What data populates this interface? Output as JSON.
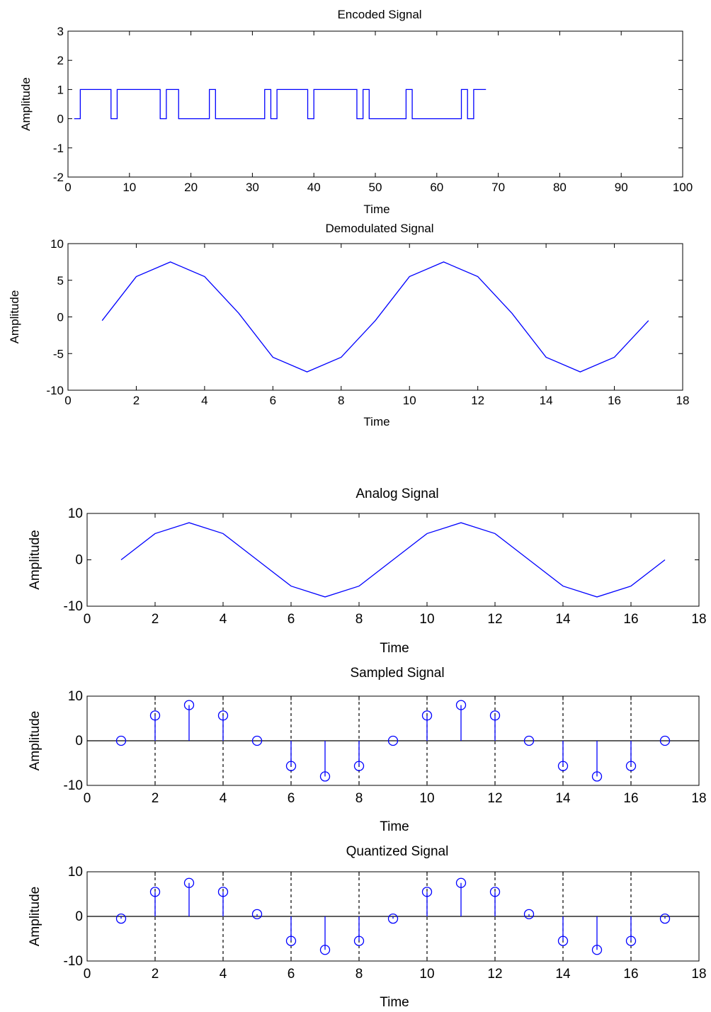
{
  "chart_data": [
    {
      "type": "line",
      "step": true,
      "title": "Encoded Signal",
      "xlabel": "Time",
      "ylabel": "Amplitude",
      "xlim": [
        0,
        100
      ],
      "ylim": [
        -2,
        3
      ],
      "xticks": [
        0,
        10,
        20,
        30,
        40,
        50,
        60,
        70,
        80,
        90,
        100
      ],
      "yticks": [
        -2,
        -1,
        0,
        1,
        2,
        3
      ],
      "color": "#0000ff",
      "bits": [
        0,
        1,
        1,
        1,
        1,
        1,
        0,
        1,
        1,
        1,
        1,
        1,
        1,
        1,
        0,
        1,
        1,
        0,
        0,
        0,
        0,
        0,
        1,
        0,
        0,
        0,
        0,
        0,
        0,
        0,
        0,
        1,
        0,
        1,
        1,
        1,
        1,
        1,
        0,
        1,
        1,
        1,
        1,
        1,
        1,
        1,
        0,
        1,
        0,
        0,
        0,
        0,
        0,
        0,
        1,
        0,
        0,
        0,
        0,
        0,
        0,
        0,
        0,
        1,
        0,
        1,
        1
      ],
      "x": [
        1,
        68
      ]
    },
    {
      "type": "line",
      "title": "Demodulated Signal",
      "xlabel": "Time",
      "ylabel": "Amplitude",
      "xlim": [
        0,
        18
      ],
      "ylim": [
        -10,
        10
      ],
      "xticks": [
        0,
        2,
        4,
        6,
        8,
        10,
        12,
        14,
        16,
        18
      ],
      "yticks": [
        -10,
        -5,
        0,
        5,
        10
      ],
      "color": "#0000ff",
      "x": [
        1,
        2,
        3,
        4,
        5,
        6,
        7,
        8,
        9,
        10,
        11,
        12,
        13,
        14,
        15,
        16,
        17
      ],
      "values": [
        -0.5,
        5.5,
        7.5,
        5.5,
        0.5,
        -5.5,
        -7.5,
        -5.5,
        -0.5,
        5.5,
        7.5,
        5.5,
        0.5,
        -5.5,
        -7.5,
        -5.5,
        -0.5
      ]
    },
    {
      "type": "line",
      "title": "Analog Signal",
      "xlabel": "Time",
      "ylabel": "Amplitude",
      "xlim": [
        0,
        18
      ],
      "ylim": [
        -10,
        10
      ],
      "xticks": [
        0,
        2,
        4,
        6,
        8,
        10,
        12,
        14,
        16,
        18
      ],
      "yticks": [
        -10,
        0,
        10
      ],
      "color": "#0000ff",
      "x": [
        1,
        2,
        3,
        4,
        5,
        6,
        7,
        8,
        9,
        10,
        11,
        12,
        13,
        14,
        15,
        16,
        17
      ],
      "values": [
        0,
        5.66,
        8,
        5.66,
        0,
        -5.66,
        -8,
        -5.66,
        0,
        5.66,
        8,
        5.66,
        0,
        -5.66,
        -8,
        -5.66,
        0
      ]
    },
    {
      "type": "stem",
      "title": "Sampled Signal",
      "xlabel": "Time",
      "ylabel": "Amplitude",
      "xlim": [
        0,
        18
      ],
      "ylim": [
        -10,
        10
      ],
      "xticks": [
        0,
        2,
        4,
        6,
        8,
        10,
        12,
        14,
        16,
        18
      ],
      "yticks": [
        -10,
        0,
        10
      ],
      "color": "#0000ff",
      "dashed_gridlines_x": [
        2,
        4,
        6,
        8,
        10,
        12,
        14,
        16
      ],
      "x": [
        1,
        2,
        3,
        4,
        5,
        6,
        7,
        8,
        9,
        10,
        11,
        12,
        13,
        14,
        15,
        16,
        17
      ],
      "values": [
        0,
        5.66,
        8,
        5.66,
        0,
        -5.66,
        -8,
        -5.66,
        0,
        5.66,
        8,
        5.66,
        0,
        -5.66,
        -8,
        -5.66,
        0
      ]
    },
    {
      "type": "stem",
      "title": "Quantized Signal",
      "xlabel": "Time",
      "ylabel": "Amplitude",
      "xlim": [
        0,
        18
      ],
      "ylim": [
        -10,
        10
      ],
      "xticks": [
        0,
        2,
        4,
        6,
        8,
        10,
        12,
        14,
        16,
        18
      ],
      "yticks": [
        -10,
        0,
        10
      ],
      "color": "#0000ff",
      "dashed_gridlines_x": [
        2,
        4,
        6,
        8,
        10,
        12,
        14,
        16
      ],
      "x": [
        1,
        2,
        3,
        4,
        5,
        6,
        7,
        8,
        9,
        10,
        11,
        12,
        13,
        14,
        15,
        16,
        17
      ],
      "values": [
        -0.5,
        5.5,
        7.5,
        5.5,
        0.5,
        -5.5,
        -7.5,
        -5.5,
        -0.5,
        5.5,
        7.5,
        5.5,
        0.5,
        -5.5,
        -7.5,
        -5.5,
        -0.5
      ]
    }
  ]
}
